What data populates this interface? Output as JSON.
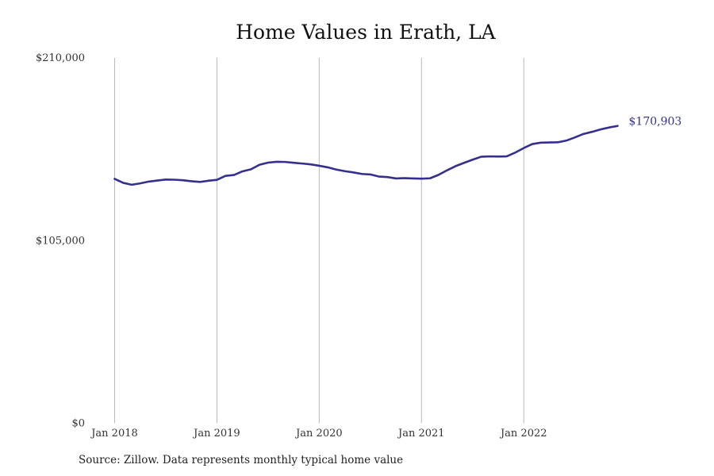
{
  "chart_data": {
    "type": "line",
    "title": "Home Values in Erath, LA",
    "xlabel": "",
    "ylabel": "",
    "ylim": [
      0,
      210000
    ],
    "y_ticks": [
      {
        "value": 0,
        "label": "$0"
      },
      {
        "value": 105000,
        "label": "$105,000"
      },
      {
        "value": 210000,
        "label": "$210,000"
      }
    ],
    "x_ticks": [
      {
        "value": 2018.0,
        "label": "Jan 2018"
      },
      {
        "value": 2019.0,
        "label": "Jan 2019"
      },
      {
        "value": 2020.0,
        "label": "Jan 2020"
      },
      {
        "value": 2021.0,
        "label": "Jan 2021"
      },
      {
        "value": 2022.0,
        "label": "Jan 2022"
      }
    ],
    "xlim": [
      2018.0,
      2022.917
    ],
    "grid": "vertical at x ticks",
    "line_color": "#35308f",
    "end_label": "$170,903",
    "series": [
      {
        "values": [
          [
            2018.0,
            140500
          ],
          [
            2018.083,
            138200
          ],
          [
            2018.167,
            137100
          ],
          [
            2018.25,
            137900
          ],
          [
            2018.333,
            138900
          ],
          [
            2018.417,
            139500
          ],
          [
            2018.5,
            140100
          ],
          [
            2018.583,
            140000
          ],
          [
            2018.667,
            139700
          ],
          [
            2018.75,
            139100
          ],
          [
            2018.833,
            138700
          ],
          [
            2018.917,
            139400
          ],
          [
            2019.0,
            139900
          ],
          [
            2019.083,
            142200
          ],
          [
            2019.167,
            142700
          ],
          [
            2019.25,
            144800
          ],
          [
            2019.333,
            146000
          ],
          [
            2019.417,
            148600
          ],
          [
            2019.5,
            149800
          ],
          [
            2019.583,
            150300
          ],
          [
            2019.667,
            150200
          ],
          [
            2019.75,
            149700
          ],
          [
            2019.833,
            149300
          ],
          [
            2019.917,
            148800
          ],
          [
            2020.0,
            148000
          ],
          [
            2020.083,
            147100
          ],
          [
            2020.167,
            145800
          ],
          [
            2020.25,
            144900
          ],
          [
            2020.333,
            144200
          ],
          [
            2020.417,
            143300
          ],
          [
            2020.5,
            143000
          ],
          [
            2020.583,
            141800
          ],
          [
            2020.667,
            141500
          ],
          [
            2020.75,
            140700
          ],
          [
            2020.833,
            140900
          ],
          [
            2020.917,
            140700
          ],
          [
            2021.0,
            140600
          ],
          [
            2021.083,
            140800
          ],
          [
            2021.167,
            142800
          ],
          [
            2021.25,
            145400
          ],
          [
            2021.333,
            147800
          ],
          [
            2021.417,
            149700
          ],
          [
            2021.5,
            151500
          ],
          [
            2021.583,
            153200
          ],
          [
            2021.667,
            153400
          ],
          [
            2021.75,
            153300
          ],
          [
            2021.833,
            153400
          ],
          [
            2021.917,
            155600
          ],
          [
            2022.0,
            158200
          ],
          [
            2022.083,
            160500
          ],
          [
            2022.167,
            161300
          ],
          [
            2022.25,
            161400
          ],
          [
            2022.333,
            161500
          ],
          [
            2022.417,
            162500
          ],
          [
            2022.5,
            164300
          ],
          [
            2022.583,
            166300
          ],
          [
            2022.667,
            167500
          ],
          [
            2022.75,
            168900
          ],
          [
            2022.833,
            170000
          ],
          [
            2022.917,
            170903
          ]
        ]
      }
    ]
  },
  "source_note": "Source: Zillow. Data represents monthly typical home value"
}
